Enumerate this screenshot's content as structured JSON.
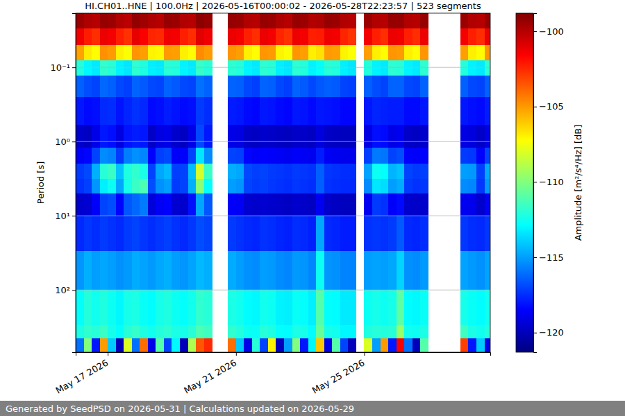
{
  "chart_data": {
    "type": "heatmap",
    "title": "HI.CH01..HNE | 100.0Hz | 2026-05-16T00:00:02 - 2026-05-28T22:23:57 | 523 segments",
    "ylabel": "Period [s]",
    "log": "y",
    "grid": true,
    "xlim": [
      "2026-05-16T00:00:02",
      "2026-05-28T22:23:57"
    ],
    "ylim": [
      0.0186,
      690
    ],
    "xticks": [
      {
        "value": "2026-05-17T00:00:00",
        "label": "May 17 2026"
      },
      {
        "value": "2026-05-21T00:00:00",
        "label": "May 21 2026"
      },
      {
        "value": "2026-05-25T00:00:00",
        "label": "May 25 2026"
      }
    ],
    "yticks": [
      {
        "value": 0.1,
        "label": "10⁻¹"
      },
      {
        "value": 1,
        "label": "10⁰"
      },
      {
        "value": 10,
        "label": "10¹"
      },
      {
        "value": 100,
        "label": "10²"
      }
    ],
    "x_bins": [
      "2026-05-16T00:00:00",
      "2026-05-16T06:00:00",
      "2026-05-16T12:00:00",
      "2026-05-16T18:00:00",
      "2026-05-17T00:00:00",
      "2026-05-17T06:00:00",
      "2026-05-17T12:00:00",
      "2026-05-17T18:00:00",
      "2026-05-18T00:00:00",
      "2026-05-18T06:00:00",
      "2026-05-18T12:00:00",
      "2026-05-18T18:00:00",
      "2026-05-19T00:00:00",
      "2026-05-19T06:00:00",
      "2026-05-19T12:00:00",
      "2026-05-19T18:00:00",
      "2026-05-20T00:00:00",
      "2026-05-20T06:00:00",
      "2026-05-20T12:00:00",
      "2026-05-20T18:00:00",
      "2026-05-21T00:00:00",
      "2026-05-21T06:00:00",
      "2026-05-21T12:00:00",
      "2026-05-21T18:00:00",
      "2026-05-22T00:00:00",
      "2026-05-22T06:00:00",
      "2026-05-22T12:00:00",
      "2026-05-22T18:00:00",
      "2026-05-23T00:00:00",
      "2026-05-23T06:00:00",
      "2026-05-23T12:00:00",
      "2026-05-23T18:00:00",
      "2026-05-24T00:00:00",
      "2026-05-24T06:00:00",
      "2026-05-24T12:00:00",
      "2026-05-24T18:00:00",
      "2026-05-25T00:00:00",
      "2026-05-25T06:00:00",
      "2026-05-25T12:00:00",
      "2026-05-25T18:00:00",
      "2026-05-26T00:00:00",
      "2026-05-26T06:00:00",
      "2026-05-26T12:00:00",
      "2026-05-26T18:00:00",
      "2026-05-27T00:00:00",
      "2026-05-27T06:00:00",
      "2026-05-27T12:00:00",
      "2026-05-27T18:00:00",
      "2026-05-28T00:00:00",
      "2026-05-28T06:00:00",
      "2026-05-28T12:00:00",
      "2026-05-28T18:00:00",
      "2026-05-28T22:23:57"
    ],
    "y_bins": [
      0.0186,
      0.03,
      0.05,
      0.08,
      0.13,
      0.25,
      0.6,
      1.2,
      2,
      3.2,
      5,
      10,
      30,
      100,
      300,
      450,
      690
    ],
    "z": [
      [
        -99.4,
        -101.3,
        -105.2,
        -112.1,
        -116.4,
        -118.0,
        -119.6,
        -118.6,
        -117.2,
        -117.4,
        -119.6,
        -117.6,
        -115.2,
        -112.8,
        -112.3,
        -116
      ],
      [
        -99.8,
        -102.2,
        -106.8,
        -113.0,
        -116.8,
        -118.3,
        -119.8,
        -118.4,
        -116.9,
        -117.1,
        -119.5,
        -117.3,
        -114.6,
        -112.1,
        -111.8,
        -110
      ],
      [
        -100.0,
        -102.6,
        -107.2,
        -113.3,
        -117.0,
        -118.2,
        -119.0,
        -117.0,
        -114.6,
        -115.2,
        -118.6,
        -117.5,
        -115.0,
        -112.5,
        -112.0,
        -118
      ],
      [
        -99.3,
        -101.2,
        -104.8,
        -111.8,
        -116.2,
        -117.6,
        -118.0,
        -115.4,
        -112.0,
        -113.2,
        -117.0,
        -117.2,
        -114.8,
        -112.2,
        -111.6,
        -105
      ],
      [
        -99.4,
        -101.4,
        -105.0,
        -112.0,
        -116.4,
        -117.5,
        -118.2,
        -115.6,
        -111.6,
        -112.6,
        -116.8,
        -117.4,
        -115.0,
        -112.6,
        -112.4,
        -114
      ],
      [
        -99.9,
        -102.3,
        -106.9,
        -113.1,
        -116.9,
        -118.1,
        -119.1,
        -117.2,
        -114.2,
        -114.8,
        -118.4,
        -117.6,
        -115.3,
        -113.0,
        -112.8,
        -120
      ],
      [
        -100.1,
        -102.7,
        -107.3,
        -113.4,
        -117.1,
        -117.7,
        -118.1,
        -115.7,
        -112.2,
        -112.4,
        -116.6,
        -117.2,
        -115.1,
        -112.4,
        -112.0,
        -108
      ],
      [
        -99.2,
        -101.1,
        -104.9,
        -111.9,
        -116.3,
        -117.4,
        -117.9,
        -115.3,
        -111.8,
        -111.6,
        -116.2,
        -117.0,
        -114.7,
        -112.3,
        -111.7,
        -116
      ],
      [
        -99.5,
        -101.5,
        -105.1,
        -112.2,
        -116.5,
        -117.6,
        -118.0,
        -115.5,
        -112.3,
        -111.2,
        -115.8,
        -117.3,
        -114.9,
        -112.7,
        -112.2,
        -104
      ],
      [
        -99.8,
        -102.4,
        -107.0,
        -113.2,
        -116.9,
        -118.3,
        -119.7,
        -118.5,
        -117.0,
        -116.8,
        -119.3,
        -117.5,
        -115.1,
        -112.9,
        -112.5,
        -119
      ],
      [
        -100.0,
        -102.5,
        -107.1,
        -113.3,
        -117.0,
        -118.2,
        -119.1,
        -117.1,
        -114.8,
        -115.3,
        -118.7,
        -117.3,
        -114.8,
        -112.4,
        -112.1,
        -111
      ],
      [
        -99.3,
        -101.3,
        -105.0,
        -112.0,
        -116.3,
        -117.9,
        -119.0,
        -116.9,
        -114.4,
        -115.0,
        -118.5,
        -117.1,
        -114.6,
        -112.2,
        -111.9,
        -117
      ],
      [
        -99.4,
        -101.4,
        -105.1,
        -112.1,
        -116.5,
        -118.1,
        -119.6,
        -118.6,
        -117.1,
        -117.2,
        -119.5,
        -117.4,
        -115.0,
        -112.6,
        -112.3,
        -113
      ],
      [
        -99.9,
        -102.3,
        -106.9,
        -113.1,
        -116.9,
        -118.3,
        -119.8,
        -118.5,
        -117.0,
        -117.0,
        -119.6,
        -117.6,
        -115.2,
        -112.8,
        -112.4,
        -120
      ],
      [
        -100.0,
        -102.6,
        -107.2,
        -113.3,
        -117.0,
        -118.2,
        -119.0,
        -117.0,
        -114.3,
        -114.6,
        -118.2,
        -117.3,
        -114.9,
        -112.5,
        -112.0,
        -109
      ],
      [
        -99.1,
        -101.0,
        -104.7,
        -111.7,
        -116.0,
        -117.2,
        -116.9,
        -113.4,
        -108.2,
        -109.8,
        -114.8,
        -116.8,
        -114.4,
        -111.8,
        -111.2,
        -103.5
      ],
      [
        -99.3,
        -101.3,
        -105.0,
        -112.0,
        -116.3,
        -117.5,
        -118.0,
        -115.4,
        -111.6,
        -112.8,
        -116.6,
        -117.0,
        -114.6,
        -112.0,
        -111.5,
        -102.5
      ],
      null,
      null,
      [
        -99.3,
        -101.2,
        -104.9,
        -111.9,
        -116.3,
        -117.9,
        -119.0,
        -117.0,
        -114.6,
        -115.0,
        -118.6,
        -117.2,
        -114.7,
        -112.3,
        -111.8,
        -104
      ],
      [
        -99.4,
        -101.4,
        -105.1,
        -112.1,
        -116.4,
        -118.0,
        -119.1,
        -117.1,
        -114.8,
        -115.2,
        -118.7,
        -117.4,
        -115.0,
        -112.5,
        -112.1,
        -114
      ],
      [
        -99.9,
        -102.3,
        -106.9,
        -113.1,
        -116.9,
        -118.3,
        -119.7,
        -118.4,
        -116.9,
        -117.0,
        -119.5,
        -117.6,
        -115.3,
        -112.9,
        -112.6,
        -119
      ],
      [
        -100.0,
        -102.6,
        -107.2,
        -113.3,
        -117.1,
        -118.4,
        -119.8,
        -118.6,
        -117.1,
        -117.2,
        -119.6,
        -117.7,
        -115.4,
        -113.0,
        -112.7,
        -112
      ],
      [
        -99.3,
        -101.2,
        -104.9,
        -111.9,
        -116.3,
        -118.0,
        -119.6,
        -118.5,
        -117.0,
        -117.1,
        -119.5,
        -117.4,
        -115.0,
        -112.5,
        -112.0,
        -117
      ],
      [
        -99.4,
        -101.4,
        -105.0,
        -112.0,
        -116.4,
        -118.1,
        -119.7,
        -118.6,
        -117.2,
        -117.3,
        -119.6,
        -117.5,
        -115.1,
        -112.6,
        -112.2,
        -107
      ],
      [
        -99.8,
        -102.4,
        -107.0,
        -113.2,
        -116.9,
        -118.3,
        -119.8,
        -118.7,
        -117.3,
        -117.4,
        -119.7,
        -117.7,
        -115.4,
        -113.1,
        -112.8,
        -120
      ],
      [
        -100.0,
        -102.7,
        -107.3,
        -113.4,
        -117.1,
        -118.4,
        -119.9,
        -118.8,
        -117.4,
        -117.5,
        -119.8,
        -117.8,
        -115.5,
        -113.2,
        -112.9,
        -115
      ],
      [
        -99.3,
        -101.2,
        -104.9,
        -111.9,
        -116.3,
        -118.0,
        -119.7,
        -118.6,
        -117.2,
        -117.3,
        -119.6,
        -117.5,
        -115.1,
        -112.7,
        -112.3,
        -110
      ],
      [
        -99.4,
        -101.4,
        -105.1,
        -112.1,
        -116.5,
        -118.1,
        -119.7,
        -118.7,
        -117.3,
        -117.4,
        -119.7,
        -117.6,
        -115.2,
        -112.8,
        -112.4,
        -118
      ],
      [
        -99.9,
        -102.3,
        -106.9,
        -113.1,
        -116.9,
        -118.3,
        -119.8,
        -118.8,
        -117.4,
        -117.5,
        -119.8,
        -117.8,
        -115.5,
        -113.2,
        -112.9,
        -113
      ],
      [
        -99.8,
        -102.2,
        -106.6,
        -112.8,
        -116.6,
        -118.0,
        -119.2,
        -117.9,
        -116.4,
        -116.4,
        -118.8,
        -114.8,
        -112.6,
        -111.0,
        -110.6,
        -106
      ],
      [
        -99.3,
        -101.3,
        -105.0,
        -112.0,
        -116.4,
        -118.1,
        -119.7,
        -118.7,
        -117.3,
        -117.4,
        -119.7,
        -117.6,
        -115.2,
        -112.8,
        -112.4,
        -119
      ],
      [
        -99.4,
        -101.4,
        -105.1,
        -112.1,
        -116.5,
        -118.2,
        -119.8,
        -118.8,
        -117.4,
        -117.5,
        -119.8,
        -117.7,
        -115.3,
        -112.9,
        -112.5,
        -111
      ],
      [
        -99.9,
        -102.4,
        -107.0,
        -113.2,
        -117.0,
        -118.4,
        -119.9,
        -118.9,
        -117.5,
        -117.6,
        -119.9,
        -117.9,
        -115.6,
        -113.3,
        -113.0,
        -117
      ],
      [
        -100.0,
        -102.7,
        -107.3,
        -113.4,
        -117.1,
        -118.4,
        -119.9,
        -118.9,
        -117.5,
        -117.6,
        -119.9,
        -117.9,
        -115.6,
        -113.3,
        -113.0,
        -120
      ],
      null,
      [
        -99.4,
        -101.4,
        -105.1,
        -112.1,
        -116.4,
        -118.0,
        -119.1,
        -117.1,
        -114.9,
        -115.4,
        -118.8,
        -117.4,
        -115.0,
        -112.6,
        -112.2,
        -108
      ],
      [
        -99.9,
        -102.3,
        -106.9,
        -113.1,
        -116.8,
        -117.7,
        -118.2,
        -115.8,
        -112.6,
        -113.4,
        -117.2,
        -117.3,
        -114.9,
        -112.4,
        -112.0,
        -115
      ],
      [
        -100.0,
        -102.6,
        -107.2,
        -113.3,
        -117.0,
        -117.8,
        -118.3,
        -115.9,
        -112.8,
        -113.6,
        -117.4,
        -117.4,
        -115.0,
        -112.6,
        -112.1,
        -105
      ],
      [
        -99.3,
        -101.2,
        -104.9,
        -111.9,
        -116.3,
        -117.9,
        -119.0,
        -117.0,
        -114.5,
        -115.0,
        -118.6,
        -117.2,
        -114.8,
        -112.4,
        -112.0,
        -118
      ],
      [
        -99.3,
        -101.3,
        -105.0,
        -112.0,
        -116.3,
        -117.9,
        -118.8,
        -116.8,
        -114.2,
        -114.7,
        -118.3,
        -116.5,
        -113.8,
        -110.8,
        -109.5,
        -101.5
      ],
      [
        -99.9,
        -102.3,
        -106.9,
        -113.1,
        -116.9,
        -118.3,
        -119.7,
        -118.5,
        -117.0,
        -117.2,
        -119.6,
        -117.6,
        -115.3,
        -112.9,
        -112.5,
        -116
      ],
      [
        -100.0,
        -102.6,
        -107.2,
        -113.3,
        -117.0,
        -118.3,
        -119.8,
        -118.6,
        -117.2,
        -117.4,
        -119.7,
        -117.7,
        -115.4,
        -113.0,
        -112.6,
        -120
      ],
      [
        -99.3,
        -101.2,
        -104.9,
        -111.9,
        -116.3,
        -118.0,
        -119.6,
        -118.5,
        -117.1,
        -117.3,
        -119.6,
        -117.5,
        -115.1,
        -112.7,
        -112.3,
        -111
      ],
      null,
      null,
      null,
      null,
      [
        -99.4,
        -101.4,
        -105.1,
        -112.1,
        -116.4,
        -118.0,
        -119.1,
        -117.2,
        -115.0,
        -115.4,
        -118.8,
        -117.3,
        -114.9,
        -112.4,
        -111.5,
        -103
      ],
      [
        -99.9,
        -102.3,
        -106.9,
        -113.1,
        -116.9,
        -118.2,
        -119.2,
        -117.3,
        -115.1,
        -115.5,
        -118.9,
        -117.5,
        -115.1,
        -112.7,
        -112.3,
        -118
      ],
      [
        -100.0,
        -102.6,
        -107.2,
        -113.3,
        -117.0,
        -118.3,
        -119.7,
        -118.5,
        -117.1,
        -117.3,
        -119.6,
        -117.6,
        -115.3,
        -112.9,
        -112.5,
        -114
      ],
      [
        -99.3,
        -101.2,
        -104.9,
        -111.9,
        -116.3,
        -117.9,
        -119.0,
        -117.0,
        -114.7,
        -115.1,
        -118.7,
        -117.3,
        -114.9,
        -112.5,
        -112.1,
        -119
      ]
    ],
    "colorbar": {
      "label": "Amplitude [m²/s⁴/Hz] [dB]",
      "range": [
        -121.3,
        -98.8
      ],
      "ticks": [
        {
          "value": -100,
          "label": "−100"
        },
        {
          "value": -105,
          "label": "−105"
        },
        {
          "value": -110,
          "label": "−110"
        },
        {
          "value": -115,
          "label": "−115"
        },
        {
          "value": -120,
          "label": "−120"
        }
      ]
    }
  },
  "footer": "Generated by SeedPSD on 2026-05-31 | Calculations updated on 2026-05-29"
}
